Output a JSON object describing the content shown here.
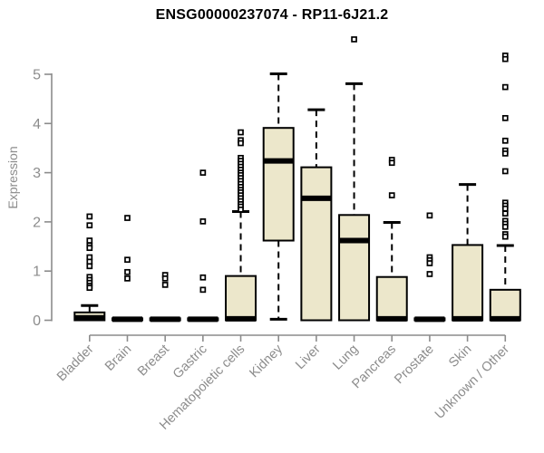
{
  "chart_data": {
    "type": "boxplot",
    "title": "ENSG00000237074 - RP11-6J21.2",
    "xlabel": "",
    "ylabel": "Expression",
    "ylim": [
      0,
      5
    ],
    "yticks": [
      0,
      1,
      2,
      3,
      4,
      5
    ],
    "grid": false,
    "legend_position": "none",
    "box_fill": "#ece7cb",
    "box_border": "#000000",
    "median_color": "#000000",
    "axis_color": "#8c8c8c",
    "title_color": "#000000",
    "categories": [
      "Bladder",
      "Brain",
      "Breast",
      "Gastric",
      "Hematopoietic cells",
      "Kidney",
      "Liver",
      "Lung",
      "Pancreas",
      "Prostate",
      "Skin",
      "Unknown / Other"
    ],
    "series": [
      {
        "name": "Bladder",
        "min": 0,
        "q1": 0,
        "median": 0.05,
        "q3": 0.16,
        "max": 0.3,
        "outliers": [
          2.11,
          1.93,
          1.62,
          1.52,
          1.47,
          1.28,
          1.19,
          1.1,
          0.88,
          0.82,
          0.76,
          0.7,
          0.66
        ]
      },
      {
        "name": "Brain",
        "min": 0,
        "q1": 0,
        "median": 0.02,
        "q3": 0.04,
        "max": 0.05,
        "outliers": [
          2.08,
          1.23,
          0.98,
          0.85
        ]
      },
      {
        "name": "Breast",
        "min": 0,
        "q1": 0,
        "median": 0.02,
        "q3": 0.04,
        "max": 0.05,
        "outliers": [
          0.92,
          0.85,
          0.72
        ]
      },
      {
        "name": "Gastric",
        "min": 0,
        "q1": 0,
        "median": 0.02,
        "q3": 0.04,
        "max": 0.05,
        "outliers": [
          3.0,
          2.01,
          0.87,
          0.62
        ]
      },
      {
        "name": "Hematopoietic cells",
        "min": 0,
        "q1": 0,
        "median": 0.03,
        "q3": 0.9,
        "max": 2.21,
        "outliers": [
          3.82,
          3.66,
          3.6,
          3.3,
          3.24,
          3.18,
          3.12,
          3.06,
          3.0,
          2.95,
          2.89,
          2.83,
          2.77,
          2.71,
          2.65,
          2.6,
          2.54,
          2.48,
          2.42,
          2.36,
          2.31,
          2.25
        ]
      },
      {
        "name": "Kidney",
        "min": 0.02,
        "q1": 1.62,
        "median": 3.24,
        "q3": 3.91,
        "max": 5.01,
        "outliers": []
      },
      {
        "name": "Liver",
        "min": 0,
        "q1": 0,
        "median": 2.48,
        "q3": 3.11,
        "max": 4.28,
        "outliers": []
      },
      {
        "name": "Lung",
        "min": 0,
        "q1": 0,
        "median": 1.62,
        "q3": 2.14,
        "max": 4.81,
        "outliers": [
          5.71
        ]
      },
      {
        "name": "Pancreas",
        "min": 0,
        "q1": 0,
        "median": 0.03,
        "q3": 0.88,
        "max": 1.99,
        "outliers": [
          3.26,
          3.2,
          2.54
        ]
      },
      {
        "name": "Prostate",
        "min": 0,
        "q1": 0,
        "median": 0.02,
        "q3": 0.04,
        "max": 0.05,
        "outliers": [
          2.13,
          1.28,
          1.22,
          1.16,
          0.94
        ]
      },
      {
        "name": "Skin",
        "min": 0,
        "q1": 0,
        "median": 0.03,
        "q3": 1.53,
        "max": 2.76,
        "outliers": []
      },
      {
        "name": "Unknown / Other",
        "min": 0,
        "q1": 0,
        "median": 0.03,
        "q3": 0.62,
        "max": 1.52,
        "outliers": [
          5.38,
          5.31,
          4.74,
          4.11,
          3.65,
          3.45,
          3.39,
          3.03,
          2.39,
          2.33,
          2.27,
          2.17,
          2.02,
          1.96,
          1.9,
          1.75,
          1.7
        ]
      }
    ]
  }
}
